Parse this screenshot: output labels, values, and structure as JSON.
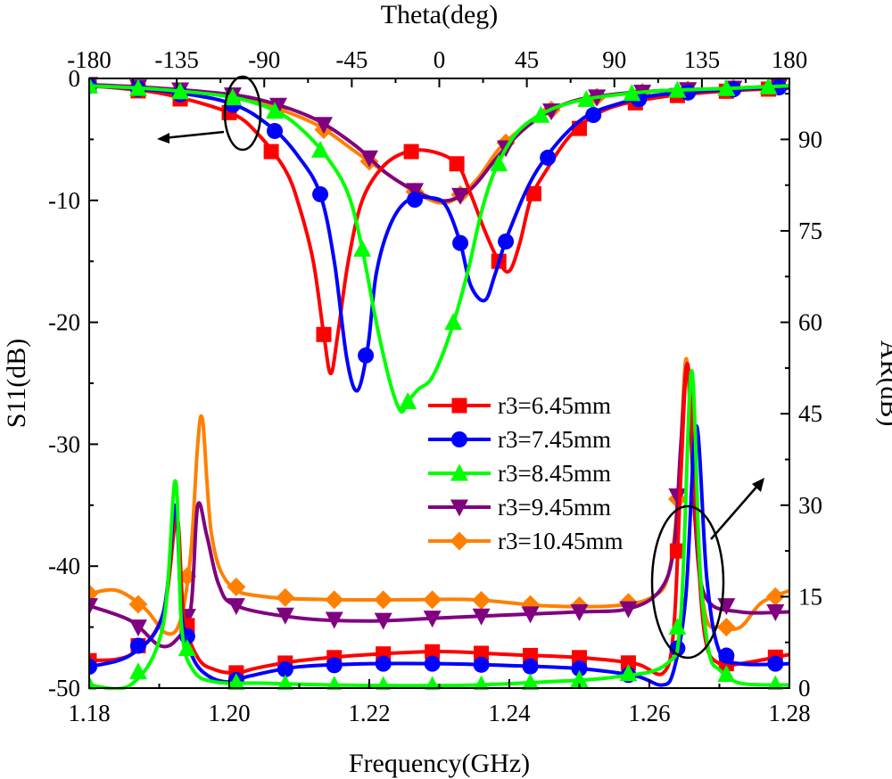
{
  "chart_data": {
    "type": "line",
    "bottom_axis": {
      "label": "Frequency(GHz)",
      "range": [
        1.18,
        1.28
      ],
      "ticks": [
        1.18,
        1.2,
        1.22,
        1.24,
        1.26,
        1.28
      ],
      "tick_labels": [
        "1.18",
        "1.20",
        "1.22",
        "1.24",
        "1.26",
        "1.28"
      ]
    },
    "top_axis": {
      "label": "Theta(deg)",
      "range": [
        -180,
        180
      ],
      "ticks": [
        -180,
        -135,
        -90,
        -45,
        0,
        45,
        90,
        135,
        180
      ],
      "tick_labels": [
        "-180",
        "-135",
        "-90",
        "-45",
        "0",
        "45",
        "90",
        "135",
        "180"
      ]
    },
    "left_axis": {
      "label": "S11(dB)",
      "range": [
        -50,
        0
      ],
      "ticks": [
        0,
        -10,
        -20,
        -30,
        -40,
        -50
      ],
      "tick_labels": [
        "0",
        "-10",
        "-20",
        "-30",
        "-40",
        "-50"
      ]
    },
    "right_axis": {
      "label": "AR(dB)",
      "range": [
        0,
        100
      ],
      "ticks": [
        0,
        15,
        30,
        45,
        60,
        75,
        90
      ],
      "tick_labels": [
        "0",
        "15",
        "30",
        "45",
        "60",
        "75",
        "90"
      ]
    },
    "legend_placement": "center-right",
    "grid": false,
    "series": [
      {
        "name": "r3=6.45mm",
        "color": "#ff0000",
        "marker": "square",
        "s11": {
          "x": [
            1.18,
            1.19,
            1.2,
            1.204,
            1.208,
            1.21,
            1.212,
            1.2135,
            1.2145,
            1.2155,
            1.217,
            1.219,
            1.222,
            1.2255,
            1.229,
            1.2325,
            1.2345,
            1.2365,
            1.2385,
            1.24,
            1.2415,
            1.243,
            1.245,
            1.249,
            1.254,
            1.262,
            1.272,
            1.28
          ],
          "y": [
            -0.6,
            -1.2,
            -2.8,
            -4.5,
            -7.5,
            -10.5,
            -15,
            -21,
            -24.2,
            -21,
            -15,
            -10,
            -7.2,
            -6.0,
            -6.0,
            -7.0,
            -9.5,
            -12.5,
            -15.0,
            -15.8,
            -13.5,
            -10,
            -7.8,
            -4.5,
            -2.5,
            -1.5,
            -1.0,
            -0.8
          ],
          "marker_x": [
            1.18,
            1.187,
            1.193,
            1.2,
            1.206,
            1.2135,
            1.226,
            1.2325,
            1.2385,
            1.2435,
            1.25,
            1.258,
            1.264,
            1.271,
            1.277
          ]
        },
        "ar": {
          "x": [
            1.18,
            1.186,
            1.1905,
            1.1925,
            1.1935,
            1.1955,
            1.198,
            1.201,
            1.204,
            1.21,
            1.22,
            1.23,
            1.24,
            1.25,
            1.258,
            1.262,
            1.2635,
            1.2645,
            1.2655,
            1.2668,
            1.268,
            1.27,
            1.273,
            1.28
          ],
          "y": [
            4.5,
            5.5,
            12,
            28,
            12,
            5,
            3.0,
            2.5,
            3.3,
            4.5,
            5.5,
            6.0,
            5.5,
            5.0,
            4.0,
            2.5,
            10,
            35,
            53,
            25,
            8,
            4.0,
            4.0,
            5.5
          ],
          "marker_x": [
            1.18,
            1.187,
            1.194,
            1.201,
            1.208,
            1.215,
            1.222,
            1.229,
            1.236,
            1.243,
            1.25,
            1.257,
            1.264,
            1.271,
            1.278
          ]
        }
      },
      {
        "name": "r3=7.45mm",
        "color": "#0000ff",
        "marker": "circle",
        "s11": {
          "x": [
            1.18,
            1.19,
            1.2,
            1.206,
            1.21,
            1.213,
            1.215,
            1.2168,
            1.2183,
            1.2198,
            1.221,
            1.223,
            1.2255,
            1.229,
            1.231,
            1.233,
            1.2345,
            1.2365,
            1.238,
            1.24,
            1.244,
            1.25,
            1.256,
            1.262,
            1.272,
            1.28
          ],
          "y": [
            -0.6,
            -1.0,
            -2.0,
            -4.0,
            -6.5,
            -9.5,
            -15,
            -23,
            -25.6,
            -22,
            -16,
            -12,
            -10.0,
            -9.8,
            -10.5,
            -13.5,
            -17,
            -18.2,
            -16,
            -12.5,
            -7.5,
            -3.5,
            -2.0,
            -1.3,
            -0.9,
            -0.7
          ],
          "marker_x": [
            1.18,
            1.187,
            1.193,
            1.2005,
            1.2065,
            1.213,
            1.2195,
            1.2265,
            1.233,
            1.2395,
            1.2455,
            1.252,
            1.2585,
            1.2655,
            1.272,
            1.2785
          ]
        },
        "ar": {
          "x": [
            1.18,
            1.186,
            1.1905,
            1.1923,
            1.1932,
            1.1948,
            1.197,
            1.2,
            1.203,
            1.21,
            1.22,
            1.23,
            1.24,
            1.25,
            1.258,
            1.2618,
            1.2635,
            1.2652,
            1.2667,
            1.2682,
            1.27,
            1.273,
            1.28
          ],
          "y": [
            3.5,
            5.5,
            12,
            30,
            12,
            5,
            2.0,
            1.0,
            2.0,
            3.5,
            4.0,
            4.0,
            3.7,
            3.2,
            2.0,
            0.5,
            3,
            15,
            43,
            18,
            6,
            4.0,
            4.0
          ],
          "marker_x": [
            1.18,
            1.187,
            1.194,
            1.201,
            1.208,
            1.215,
            1.222,
            1.229,
            1.236,
            1.243,
            1.25,
            1.257,
            1.264,
            1.271,
            1.278
          ]
        }
      },
      {
        "name": "r3=8.45mm",
        "color": "#00ff00",
        "marker": "triangle-up",
        "s11": {
          "x": [
            1.18,
            1.19,
            1.2,
            1.206,
            1.21,
            1.214,
            1.217,
            1.219,
            1.221,
            1.223,
            1.2245,
            1.2255,
            1.227,
            1.229,
            1.2315,
            1.234,
            1.236,
            1.238,
            1.241,
            1.245,
            1.25,
            1.256,
            1.262,
            1.272,
            1.28
          ],
          "y": [
            -0.6,
            -0.9,
            -1.5,
            -2.5,
            -4.0,
            -6.5,
            -9.5,
            -14,
            -20,
            -25,
            -27.3,
            -26.5,
            -25.5,
            -24.5,
            -21,
            -16,
            -11,
            -7.5,
            -4.5,
            -2.8,
            -1.8,
            -1.3,
            -1.0,
            -0.8,
            -0.6
          ],
          "marker_x": [
            1.18,
            1.187,
            1.193,
            1.2005,
            1.2065,
            1.213,
            1.219,
            1.2255,
            1.232,
            1.2385,
            1.2445,
            1.251,
            1.2575,
            1.264,
            1.271,
            1.277
          ]
        },
        "ar": {
          "x": [
            1.18,
            1.186,
            1.1905,
            1.1923,
            1.1932,
            1.1948,
            1.198,
            1.205,
            1.215,
            1.225,
            1.235,
            1.245,
            1.255,
            1.2625,
            1.2645,
            1.266,
            1.2672,
            1.2685,
            1.27,
            1.273,
            1.28
          ],
          "y": [
            0.5,
            0.6,
            10,
            34,
            10,
            3,
            1.0,
            0.8,
            0.5,
            0.4,
            0.5,
            1.0,
            1.8,
            4.0,
            12,
            52,
            20,
            6,
            3,
            0.8,
            0.5
          ],
          "marker_x": [
            1.18,
            1.187,
            1.194,
            1.201,
            1.208,
            1.215,
            1.222,
            1.229,
            1.236,
            1.243,
            1.25,
            1.257,
            1.264,
            1.271,
            1.278
          ]
        }
      },
      {
        "name": "r3=9.45mm",
        "color": "#800080",
        "marker": "triangle-down",
        "s11": {
          "x": [
            1.18,
            1.19,
            1.2,
            1.206,
            1.2125,
            1.218,
            1.2225,
            1.2265,
            1.23,
            1.2325,
            1.235,
            1.2385,
            1.242,
            1.2455,
            1.2495,
            1.255,
            1.262,
            1.272,
            1.28
          ],
          "y": [
            -0.5,
            -0.8,
            -1.3,
            -2.0,
            -3.4,
            -5.5,
            -7.8,
            -9.2,
            -10.0,
            -9.8,
            -8.8,
            -6.3,
            -4.2,
            -2.8,
            -1.8,
            -1.3,
            -1.0,
            -0.8,
            -0.6
          ],
          "marker_x": [
            1.18,
            1.187,
            1.193,
            1.2005,
            1.207,
            1.2135,
            1.22,
            1.2265,
            1.233,
            1.2395,
            1.246,
            1.2525,
            1.259,
            1.2655,
            1.272,
            1.2785
          ]
        },
        "ar": {
          "x": [
            1.18,
            1.186,
            1.19,
            1.1925,
            1.1945,
            1.1955,
            1.1968,
            1.1985,
            1.201,
            1.21,
            1.22,
            1.23,
            1.24,
            1.25,
            1.257,
            1.2615,
            1.2635,
            1.2645,
            1.2655,
            1.2665,
            1.268,
            1.273,
            1.28
          ],
          "y": [
            13.5,
            11,
            7,
            8,
            13,
            30,
            25,
            17,
            13.5,
            11.5,
            11.0,
            11.5,
            12.0,
            12.5,
            13.0,
            16,
            23,
            40,
            53,
            28,
            15,
            12.5,
            12.5
          ],
          "marker_x": [
            1.18,
            1.187,
            1.194,
            1.201,
            1.208,
            1.215,
            1.222,
            1.229,
            1.236,
            1.243,
            1.25,
            1.257,
            1.264,
            1.271,
            1.278
          ]
        }
      },
      {
        "name": "r3=10.45mm",
        "color": "#ff8000",
        "marker": "diamond",
        "s11": {
          "x": [
            1.18,
            1.19,
            1.2,
            1.206,
            1.2125,
            1.218,
            1.2225,
            1.2265,
            1.23,
            1.2325,
            1.2355,
            1.2385,
            1.242,
            1.2455,
            1.2495,
            1.255,
            1.262,
            1.272,
            1.28
          ],
          "y": [
            -0.6,
            -0.9,
            -1.4,
            -2.3,
            -3.8,
            -6.0,
            -7.8,
            -9.3,
            -10.2,
            -9.8,
            -8.2,
            -5.8,
            -4.0,
            -2.7,
            -1.8,
            -1.3,
            -1.0,
            -0.8,
            -0.6
          ],
          "marker_x": [
            1.18,
            1.187,
            1.193,
            1.2005,
            1.207,
            1.2135,
            1.22,
            1.2265,
            1.233,
            1.2395,
            1.246,
            1.2525,
            1.259,
            1.2655,
            1.272,
            1.2785
          ]
        },
        "ar": {
          "x": [
            1.18,
            1.184,
            1.188,
            1.191,
            1.193,
            1.1945,
            1.1955,
            1.1962,
            1.1975,
            1.2,
            1.205,
            1.215,
            1.225,
            1.235,
            1.245,
            1.255,
            1.2605,
            1.2628,
            1.2642,
            1.2653,
            1.2665,
            1.268,
            1.27,
            1.273,
            1.276,
            1.28
          ],
          "y": [
            15.5,
            16,
            13,
            9,
            11,
            22,
            40,
            44,
            25,
            17,
            15,
            14.5,
            14.5,
            14.5,
            13.5,
            13.5,
            15,
            19,
            33,
            54,
            28,
            12,
            10,
            10,
            14,
            16
          ],
          "marker_x": [
            1.18,
            1.187,
            1.194,
            1.201,
            1.208,
            1.215,
            1.222,
            1.229,
            1.236,
            1.243,
            1.25,
            1.257,
            1.264,
            1.271,
            1.278
          ]
        }
      }
    ]
  }
}
